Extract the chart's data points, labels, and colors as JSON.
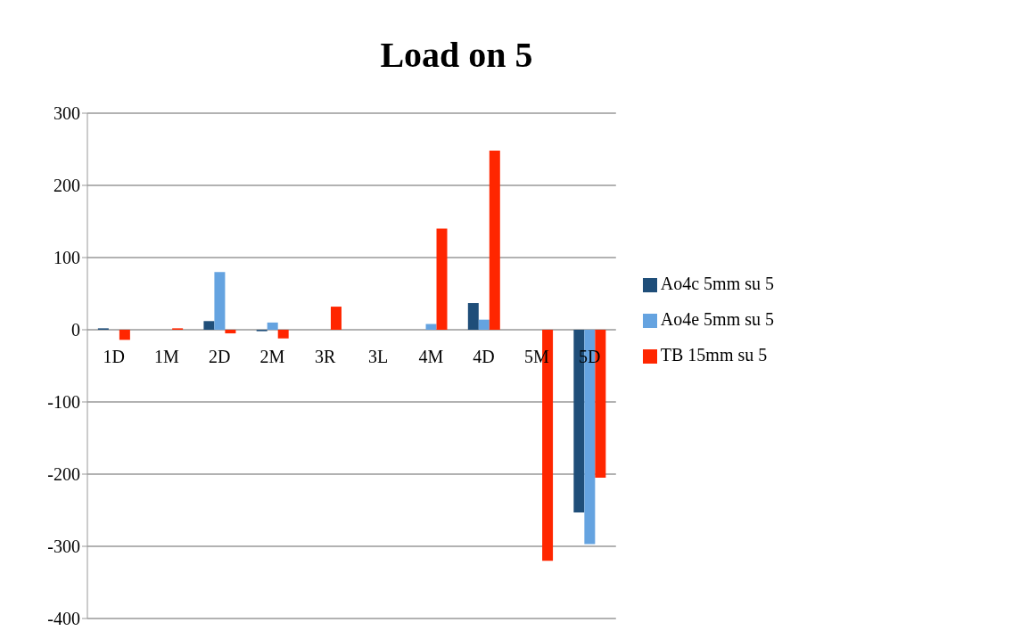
{
  "chart_data": {
    "type": "bar",
    "title": "Load on 5",
    "categories": [
      "1D",
      "1M",
      "2D",
      "2M",
      "3R",
      "3L",
      "4M",
      "4D",
      "5M",
      "5D"
    ],
    "series": [
      {
        "name": "Ao4c 5mm su 5",
        "color": "#1f4e79",
        "values": [
          2,
          0,
          12,
          -2,
          0,
          0,
          0,
          37,
          0,
          -253
        ]
      },
      {
        "name": "Ao4e 5mm su 5",
        "color": "#65a3e0",
        "values": [
          0,
          0,
          80,
          10,
          0,
          0,
          8,
          14,
          0,
          -297
        ]
      },
      {
        "name": "TB 15mm su 5",
        "color": "#ff2600",
        "values": [
          -14,
          2,
          -5,
          -12,
          32,
          0,
          140,
          248,
          -320,
          -205
        ]
      }
    ],
    "ylim": [
      -400,
      300
    ],
    "yticks": [
      -400,
      -300,
      -200,
      -100,
      0,
      100,
      200,
      300
    ],
    "grid": "y",
    "legend": "right"
  }
}
